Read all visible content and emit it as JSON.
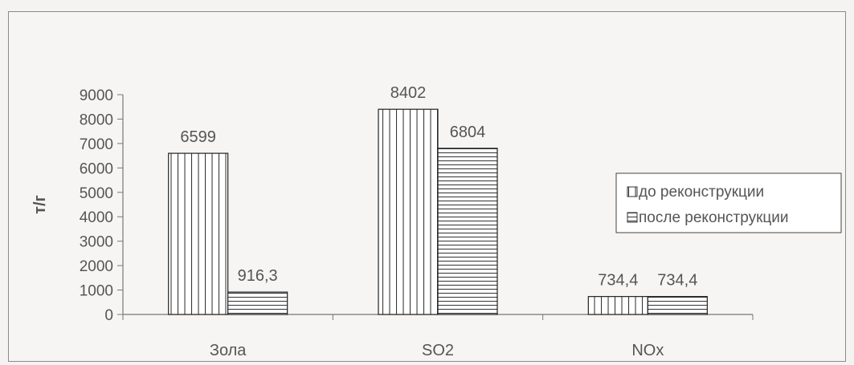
{
  "chart_data": {
    "type": "bar",
    "title": "",
    "xlabel": "",
    "ylabel": "т/г",
    "ylim": [
      0,
      9000
    ],
    "yticks": [
      0,
      1000,
      2000,
      3000,
      4000,
      5000,
      6000,
      7000,
      8000,
      9000
    ],
    "categories": [
      "Зола",
      "SO2",
      "NOx"
    ],
    "series": [
      {
        "name": "до реконструкции",
        "values": [
          6599,
          8402,
          734.4
        ],
        "labels": [
          "6599",
          "8402",
          "734,4"
        ],
        "pattern": "vertical-lines"
      },
      {
        "name": "после реконструкции",
        "values": [
          916.3,
          6804,
          734.4
        ],
        "labels": [
          "916,3",
          "6804",
          "734,4"
        ],
        "pattern": "horizontal-lines"
      }
    ],
    "grid": false,
    "legend_position": "right"
  }
}
